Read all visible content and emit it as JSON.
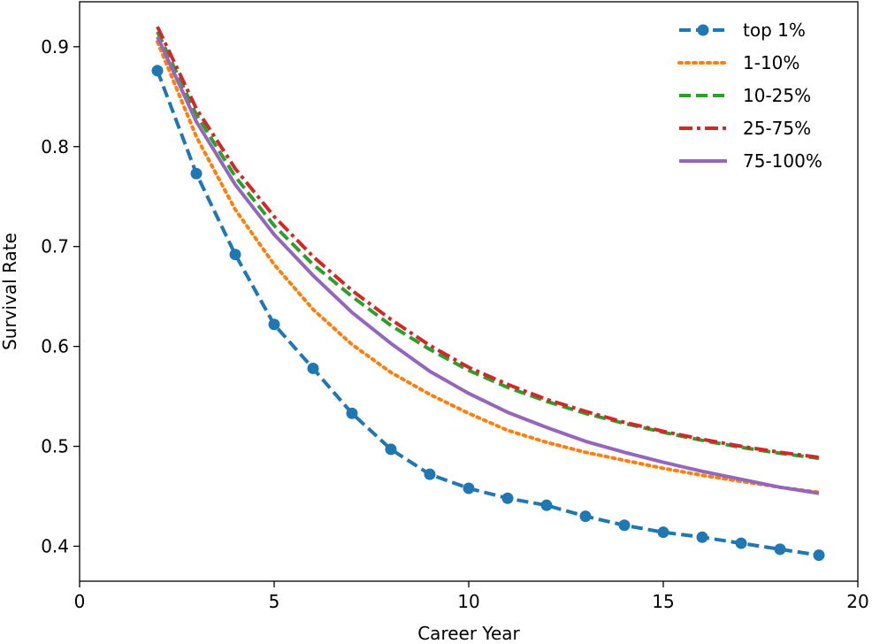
{
  "chart_data": {
    "type": "line",
    "title": "",
    "xlabel": "Career Year",
    "ylabel": "Survival Rate",
    "xlim": [
      0,
      20
    ],
    "ylim": [
      0.365,
      0.945
    ],
    "xticks": [
      0,
      5,
      10,
      15,
      20
    ],
    "yticks": [
      0.4,
      0.5,
      0.6,
      0.7,
      0.8,
      0.9
    ],
    "grid": false,
    "legend_position": "top-right",
    "x": [
      2,
      3,
      4,
      5,
      6,
      7,
      8,
      9,
      10,
      11,
      12,
      13,
      14,
      15,
      16,
      17,
      18,
      19
    ],
    "series": [
      {
        "name": "top 1%",
        "color": "#1f77b4",
        "style": "dashed",
        "marker": "circle",
        "values": [
          0.876,
          0.773,
          0.692,
          0.622,
          0.578,
          0.533,
          0.497,
          0.472,
          0.458,
          0.448,
          0.441,
          0.43,
          0.421,
          0.414,
          0.409,
          0.403,
          0.397,
          0.391
        ]
      },
      {
        "name": "1-10%",
        "color": "#ff7f0e",
        "style": "dotted",
        "marker": "none",
        "values": [
          0.905,
          0.81,
          0.737,
          0.682,
          0.637,
          0.602,
          0.574,
          0.552,
          0.533,
          0.516,
          0.504,
          0.494,
          0.486,
          0.478,
          0.471,
          0.465,
          0.459,
          0.454
        ]
      },
      {
        "name": "10-25%",
        "color": "#2ca02c",
        "style": "dashed",
        "marker": "none",
        "values": [
          0.915,
          0.832,
          0.77,
          0.721,
          0.682,
          0.65,
          0.621,
          0.597,
          0.576,
          0.559,
          0.545,
          0.533,
          0.523,
          0.514,
          0.506,
          0.499,
          0.493,
          0.488
        ]
      },
      {
        "name": "25-75%",
        "color": "#d62728",
        "style": "dashdot",
        "marker": "none",
        "values": [
          0.92,
          0.838,
          0.778,
          0.73,
          0.69,
          0.656,
          0.627,
          0.601,
          0.579,
          0.562,
          0.547,
          0.535,
          0.524,
          0.515,
          0.507,
          0.5,
          0.494,
          0.489
        ]
      },
      {
        "name": "75-100%",
        "color": "#9467bd",
        "style": "solid",
        "marker": "none",
        "values": [
          0.91,
          0.825,
          0.762,
          0.712,
          0.671,
          0.634,
          0.603,
          0.575,
          0.553,
          0.534,
          0.519,
          0.505,
          0.494,
          0.484,
          0.475,
          0.467,
          0.459,
          0.453
        ]
      }
    ]
  }
}
